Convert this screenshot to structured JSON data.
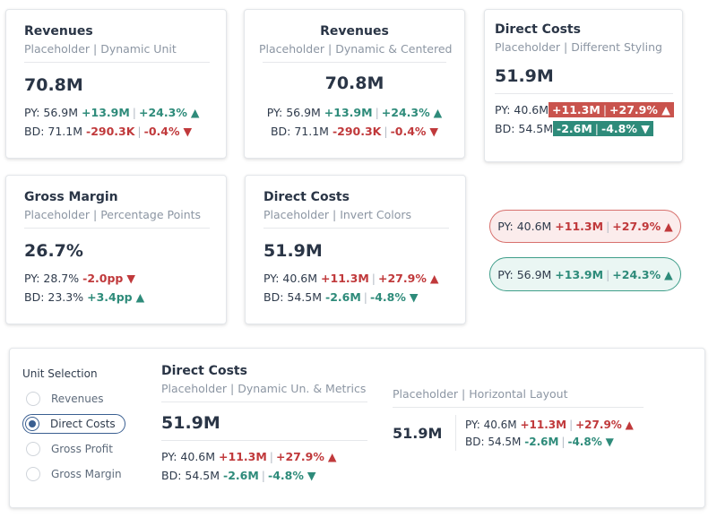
{
  "cards": {
    "rev1": {
      "title": "Revenues",
      "subtitle": "Placeholder | Dynamic Unit",
      "value": "70.8M",
      "py_label": "PY: 56.9M",
      "py_abs": "+13.9M",
      "py_pct": "+24.3%",
      "py_arrow": "▲",
      "bd_label": "BD: 71.1M",
      "bd_abs": "-290.3K",
      "bd_pct": "-0.4%",
      "bd_arrow": "▼"
    },
    "rev2": {
      "title": "Revenues",
      "subtitle": "Placeholder | Dynamic & Centered",
      "value": "70.8M",
      "py_label": "PY: 56.9M",
      "py_abs": "+13.9M",
      "py_pct": "+24.3%",
      "py_arrow": "▲",
      "bd_label": "BD: 71.1M",
      "bd_abs": "-290.3K",
      "bd_pct": "-0.4%",
      "bd_arrow": "▼"
    },
    "dc1": {
      "title": "Direct Costs",
      "subtitle": "Placeholder | Different Styling",
      "value": "51.9M",
      "py_label": "PY: 40.6M",
      "py_abs": "+11.3M",
      "py_pct": "+27.9%",
      "py_arrow": "▲",
      "bd_label": "BD: 54.5M",
      "bd_abs": "-2.6M",
      "bd_pct": "-4.8%",
      "bd_arrow": "▼"
    },
    "gm": {
      "title": "Gross Margin",
      "subtitle": "Placeholder | Percentage Points",
      "value": "26.7%",
      "py_label": "PY: 28.7%",
      "py_abs": "-2.0pp",
      "py_arrow": "▼",
      "bd_label": "BD: 23.3%",
      "bd_abs": "+3.4pp",
      "bd_arrow": "▲"
    },
    "dc2": {
      "title": "Direct Costs",
      "subtitle": "Placeholder | Invert Colors",
      "value": "51.9M",
      "py_label": "PY: 40.6M",
      "py_abs": "+11.3M",
      "py_pct": "+27.9%",
      "py_arrow": "▲",
      "bd_label": "BD: 54.5M",
      "bd_abs": "-2.6M",
      "bd_pct": "-4.8%",
      "bd_arrow": "▼"
    }
  },
  "pills": {
    "neg": {
      "label": "PY: 40.6M",
      "abs": "+11.3M",
      "pct": "+27.9%",
      "arrow": "▲"
    },
    "pos": {
      "label": "PY: 56.9M",
      "abs": "+13.9M",
      "pct": "+24.3%",
      "arrow": "▲"
    }
  },
  "bottom": {
    "unit_title": "Unit Selection",
    "options": [
      "Revenues",
      "Direct Costs",
      "Gross Profit",
      "Gross Margin"
    ],
    "selected": "Direct Costs",
    "dc3": {
      "title": "Direct Costs",
      "subtitle": "Placeholder | Dynamic Un. & Metrics",
      "value": "51.9M",
      "py_label": "PY: 40.6M",
      "py_abs": "+11.3M",
      "py_pct": "+27.9%",
      "py_arrow": "▲",
      "bd_label": "BD: 54.5M",
      "bd_abs": "-2.6M",
      "bd_pct": "-4.8%",
      "bd_arrow": "▼"
    },
    "horiz": {
      "subtitle": "Placeholder | Horizontal Layout",
      "value": "51.9M",
      "py_label": "PY: 40.6M",
      "py_abs": "+11.3M",
      "py_pct": "+27.9%",
      "py_arrow": "▲",
      "bd_label": "BD: 54.5M",
      "bd_abs": "-2.6M",
      "bd_pct": "-4.8%",
      "bd_arrow": "▼"
    }
  },
  "colors": {
    "positive": "#2e8b7a",
    "negative": "#c0393b",
    "accent": "#3a5f91"
  }
}
